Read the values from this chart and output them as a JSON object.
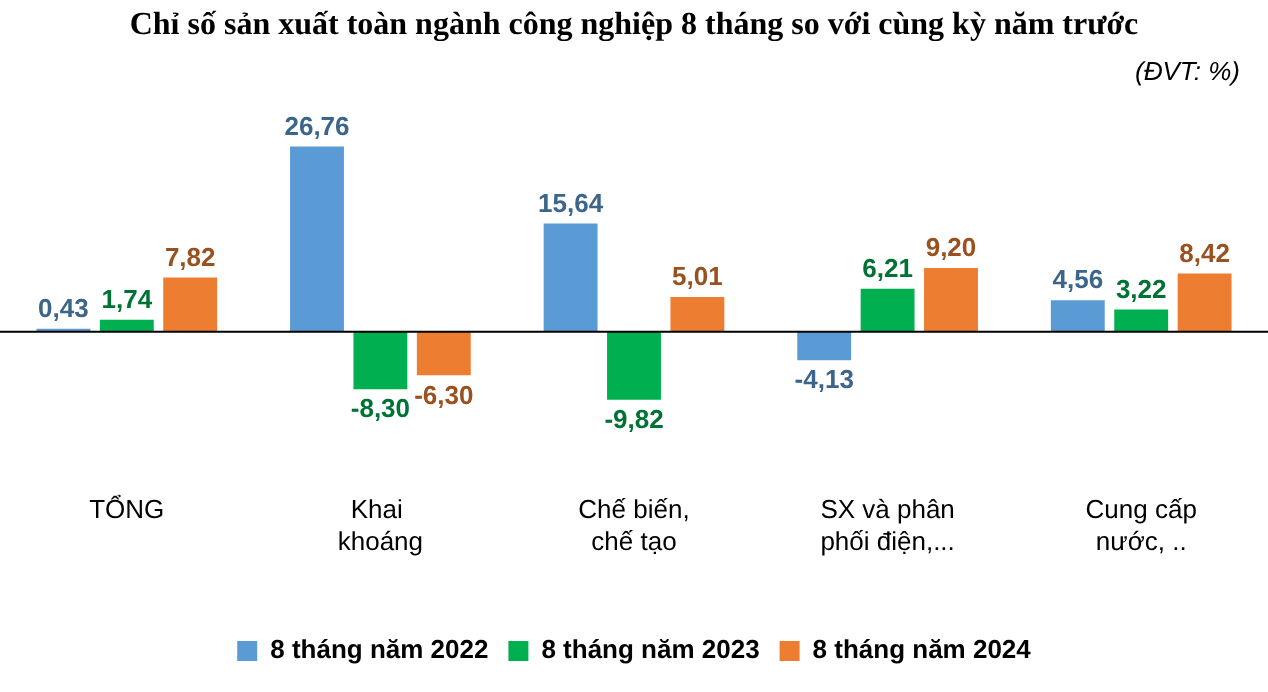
{
  "chart_data": {
    "type": "bar",
    "title": "Chỉ số sản xuất toàn ngành công nghiệp 8 tháng so với cùng kỳ năm trước",
    "annotations": [
      "(ĐVT: %)"
    ],
    "categories": [
      "TỔNG",
      "Khai  khoáng",
      "Chế biến, chế tạo",
      "SX và phân phối điện,...",
      "Cung cấp nước, .."
    ],
    "series": [
      {
        "name": "8 tháng năm 2022",
        "color": "#5b9bd5",
        "values": [
          0.43,
          26.76,
          15.64,
          -4.13,
          4.56
        ],
        "value_labels": [
          "0,43",
          "26,76",
          "15,64",
          "-4,13",
          "4,56"
        ]
      },
      {
        "name": "8 tháng năm 2023",
        "color": "#00b050",
        "values": [
          1.74,
          -8.3,
          -9.82,
          6.21,
          3.22
        ],
        "value_labels": [
          "1,74",
          "-8,30",
          "-9,82",
          "6,21",
          "3,22"
        ]
      },
      {
        "name": "8 tháng năm 2024",
        "color": "#ed7d31",
        "values": [
          7.82,
          -6.3,
          5.01,
          9.2,
          8.42
        ],
        "value_labels": [
          "7,82",
          "-6,30",
          "5,01",
          "9,20",
          "8,42"
        ]
      }
    ],
    "tick_labels": "x",
    "legend": "bottom",
    "grid": false
  }
}
